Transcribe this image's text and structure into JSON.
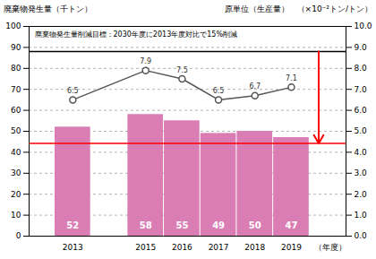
{
  "chart_data": {
    "type": "bar",
    "x": [
      2013,
      2015,
      2016,
      2017,
      2018,
      2019
    ],
    "xlim": [
      2011.8,
      2020.5
    ],
    "xticks": [
      2013,
      2015,
      2016,
      2017,
      2018,
      2019
    ],
    "x_label": "（年度）",
    "y_label": "廃棄物発生量（千トン）",
    "y2_label": "原単位（生産量）　（×10⁻²トン/トン）",
    "ylim": [
      0,
      100
    ],
    "yticks": [
      0,
      10,
      20,
      30,
      40,
      50,
      60,
      70,
      80,
      90,
      100
    ],
    "y2lim": [
      0.0,
      10.0
    ],
    "y2ticks": [
      {
        "value": 0,
        "label": "0.0"
      },
      {
        "value": 1,
        "label": "1.0"
      },
      {
        "value": 2,
        "label": "2.0"
      },
      {
        "value": 3,
        "label": "3.0"
      },
      {
        "value": 4,
        "label": "4.0"
      },
      {
        "value": 5,
        "label": "5.0"
      },
      {
        "value": 6,
        "label": "6.0"
      },
      {
        "value": 7,
        "label": "7.0"
      },
      {
        "value": 8,
        "label": "8.0"
      },
      {
        "value": 9,
        "label": "9.0"
      },
      {
        "value": 10,
        "label": "10.0"
      }
    ],
    "grid": true,
    "data_labels": true,
    "series": [
      {
        "type": "bar",
        "color": "#db7db5",
        "values": [
          52,
          58,
          55,
          49,
          50,
          47
        ]
      },
      {
        "type": "line",
        "axis": "y2",
        "color": "#555555",
        "marker": "circle",
        "values": [
          6.5,
          7.9,
          7.5,
          6.5,
          6.7,
          7.1
        ]
      }
    ],
    "reference_lines": [
      {
        "value": 44.2,
        "color": "#ff0000"
      },
      {
        "value": 88.0,
        "color": "#000000"
      }
    ],
    "arrow": {
      "from": 88.0,
      "to": 44.2,
      "color": "#ff0000"
    },
    "annotation": "廃棄物発生量削減目標：2030年度に2013年度対比で15%削減"
  }
}
